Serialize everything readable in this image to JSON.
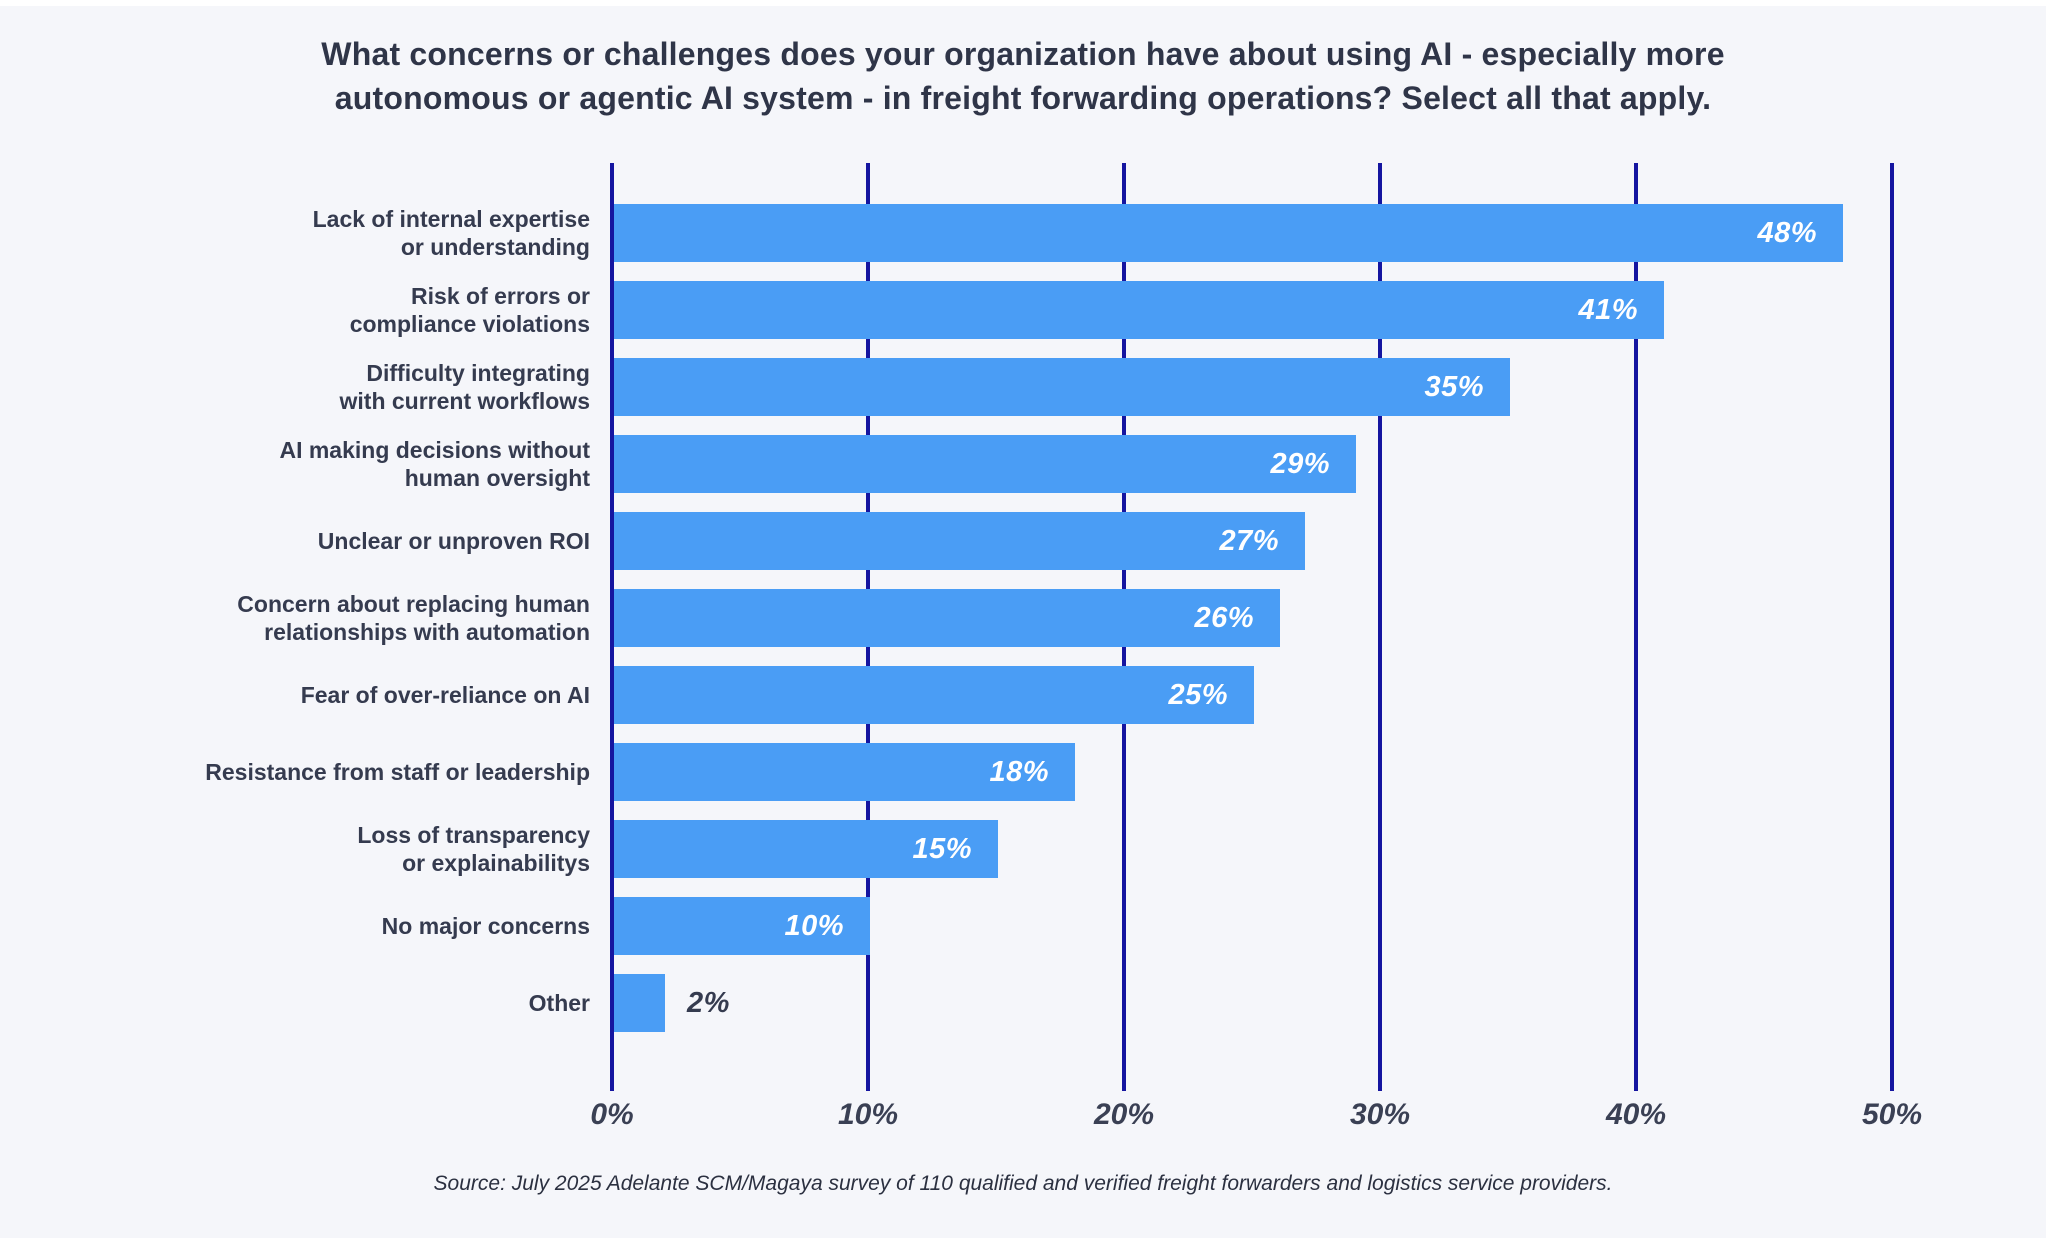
{
  "title": {
    "line1": "What concerns or challenges does your organization have about using AI - especially more",
    "line2": "autonomous or agentic AI system - in freight forwarding operations? Select all that apply."
  },
  "source": "Source: July 2025 Adelante SCM/Magaya survey of 110 qualified and verified freight forwarders and logistics service providers.",
  "colors": {
    "background": "#F5F6FA",
    "bar": "#4A9DF5",
    "gridline": "#1515A0",
    "title_text": "#2F3548",
    "label_text": "#353B4F",
    "value_text_inside": "#FFFFFF",
    "value_text_outside": "#353B4F"
  },
  "chart_data": {
    "type": "bar",
    "orientation": "horizontal",
    "title": "What concerns or challenges does your organization have about using AI - especially more autonomous or agentic AI system - in freight forwarding operations? Select all that apply.",
    "categories": [
      "Lack of internal expertise or understanding",
      "Risk of errors or compliance violations",
      "Difficulty integrating with current workflows",
      "AI making decisions without human oversight",
      "Unclear or unproven ROI",
      "Concern about replacing human relationships with automation",
      "Fear of over-reliance on AI",
      "Resistance from staff or leadership",
      "Loss of transparency or explainabilitys",
      "No major concerns",
      "Other"
    ],
    "category_lines": [
      [
        "Lack of internal expertise",
        "or understanding"
      ],
      [
        "Risk of errors or",
        "compliance violations"
      ],
      [
        "Difficulty integrating",
        "with current workflows"
      ],
      [
        "AI making decisions without",
        "human oversight"
      ],
      [
        "Unclear or unproven ROI"
      ],
      [
        "Concern about replacing human",
        "relationships with automation"
      ],
      [
        "Fear of over-reliance on AI"
      ],
      [
        "Resistance from staff or leadership"
      ],
      [
        "Loss of transparency",
        "or explainabilitys"
      ],
      [
        "No major concerns"
      ],
      [
        "Other"
      ]
    ],
    "values": [
      48,
      41,
      35,
      29,
      27,
      26,
      25,
      18,
      15,
      10,
      2
    ],
    "value_labels": [
      "48%",
      "41%",
      "35%",
      "29%",
      "27%",
      "26%",
      "25%",
      "18%",
      "15%",
      "10%",
      "2%"
    ],
    "x_ticks": [
      "0%",
      "10%",
      "20%",
      "30%",
      "40%",
      "50%"
    ],
    "x_tick_values": [
      0,
      10,
      20,
      30,
      40,
      50
    ],
    "xlim": [
      0,
      50
    ],
    "grid": true,
    "legend": false,
    "xlabel": "",
    "ylabel": ""
  }
}
